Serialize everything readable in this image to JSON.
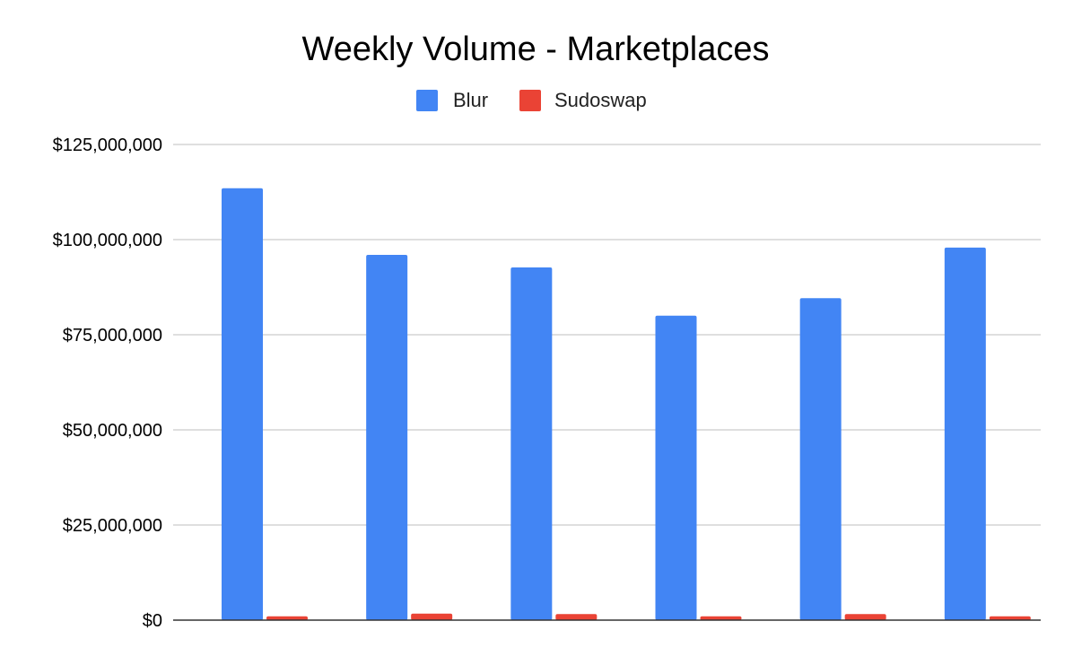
{
  "chart_data": {
    "type": "bar",
    "title": "Weekly Volume - Marketplaces",
    "xlabel": "",
    "ylabel": "",
    "categories": [
      "",
      "",
      "",
      "",
      "",
      ""
    ],
    "series": [
      {
        "name": "Blur",
        "color": "#4285f4",
        "values": [
          113500000,
          96000000,
          92700000,
          80000000,
          84600000,
          97900000
        ]
      },
      {
        "name": "Sudoswap",
        "color": "#ea4335",
        "values": [
          1000000,
          1700000,
          1600000,
          1000000,
          1600000,
          1000000
        ]
      }
    ],
    "ylim": [
      0,
      125000000
    ],
    "yticks": [
      {
        "value": 0,
        "label": "$0"
      },
      {
        "value": 25000000,
        "label": "$25,000,000"
      },
      {
        "value": 50000000,
        "label": "$50,000,000"
      },
      {
        "value": 75000000,
        "label": "$75,000,000"
      },
      {
        "value": 100000000,
        "label": "$100,000,000"
      },
      {
        "value": 125000000,
        "label": "$125,000,000"
      }
    ],
    "grid": true,
    "legend_position": "top-center"
  }
}
